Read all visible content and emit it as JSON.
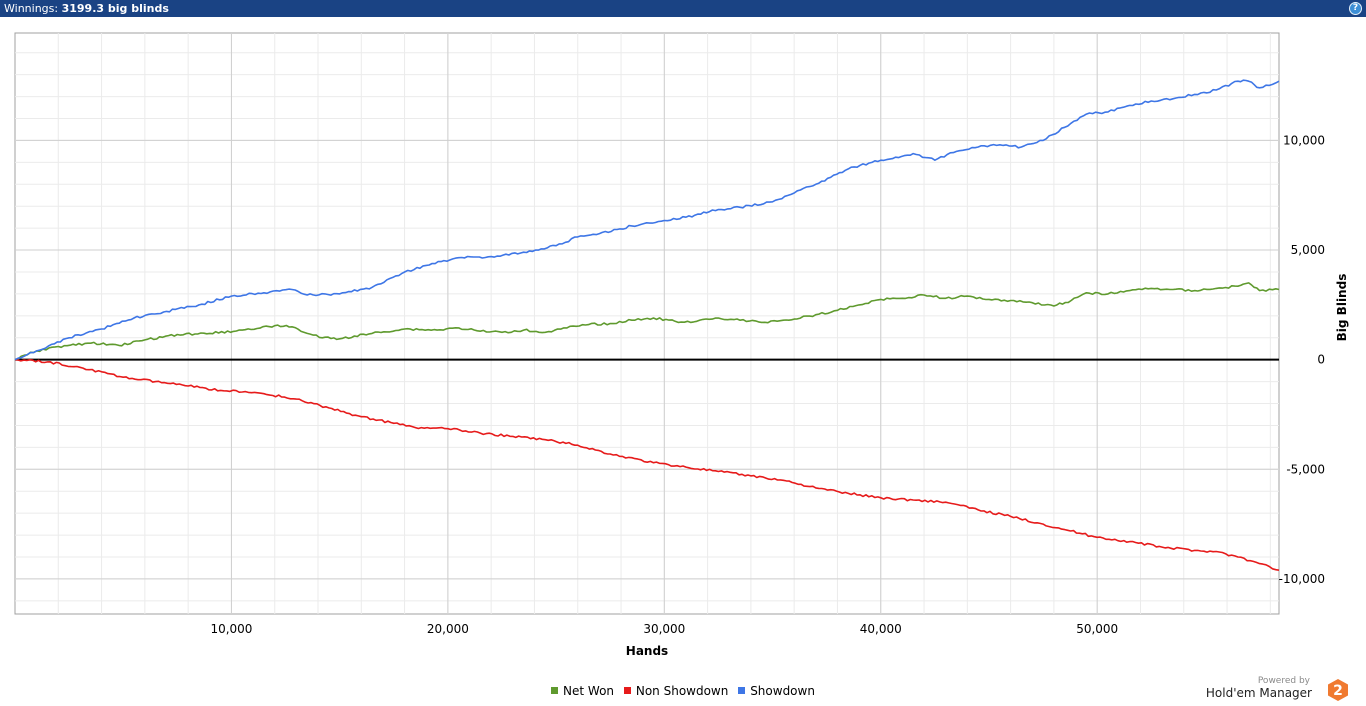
{
  "header": {
    "label": "Winnings:",
    "value": "3199.3 big blinds",
    "help_icon": "help-question-icon",
    "help_glyph": "?",
    "background": "#1a4384"
  },
  "legend": {
    "items": [
      {
        "label": "Net Won",
        "color": "#5f9a2e"
      },
      {
        "label": "Non Showdown",
        "color": "#e61b1b"
      },
      {
        "label": "Showdown",
        "color": "#3e76e6"
      }
    ]
  },
  "brand": {
    "powered_by": "Powered by",
    "name": "Hold'em Manager",
    "logo_icon": "holdem-manager-2-logo",
    "logo_text": "2",
    "logo_color": "#f07a30"
  },
  "chart_data": {
    "type": "line",
    "xlabel": "Hands",
    "ylabel": "Big Blinds",
    "xlim": [
      0,
      58400
    ],
    "ylim": [
      -11600,
      14900
    ],
    "x_ticks": [
      10000,
      20000,
      30000,
      40000,
      50000
    ],
    "x_tick_labels": [
      "10,000",
      "20,000",
      "30,000",
      "40,000",
      "50,000"
    ],
    "y_ticks": [
      -10000,
      -5000,
      0,
      5000,
      10000
    ],
    "y_tick_labels": [
      "-10,000",
      "-5,000",
      "0",
      "5,000",
      "10,000"
    ],
    "y_axis_position": "right",
    "grid": true,
    "zero_line": true,
    "legend_position": "bottom-center",
    "series": [
      {
        "name": "Net Won",
        "color": "#5f9a2e",
        "x": [
          0,
          1000,
          2000,
          3500,
          4800,
          6000,
          7500,
          9000,
          10500,
          12000,
          12800,
          13500,
          14200,
          15000,
          16500,
          18000,
          19500,
          20500,
          21500,
          22500,
          23500,
          24500,
          25500,
          26500,
          27500,
          28500,
          29500,
          30500,
          31500,
          32500,
          33500,
          34500,
          35500,
          36000,
          37000,
          38000,
          39000,
          40000,
          41000,
          42000,
          43000,
          44000,
          45000,
          46000,
          47000,
          48000,
          48800,
          49500,
          50500,
          51500,
          52500,
          53500,
          54500,
          55500,
          56500,
          57000,
          57500,
          58400
        ],
        "y": [
          0,
          400,
          600,
          750,
          650,
          900,
          1150,
          1200,
          1350,
          1550,
          1500,
          1200,
          1000,
          950,
          1200,
          1400,
          1350,
          1450,
          1300,
          1250,
          1350,
          1250,
          1450,
          1600,
          1650,
          1800,
          1900,
          1750,
          1750,
          1900,
          1800,
          1700,
          1800,
          1850,
          2050,
          2250,
          2500,
          2750,
          2800,
          2950,
          2800,
          2900,
          2750,
          2700,
          2600,
          2450,
          2700,
          3050,
          3000,
          3150,
          3250,
          3200,
          3150,
          3250,
          3350,
          3500,
          3150,
          3200
        ]
      },
      {
        "name": "Non Showdown",
        "color": "#e61b1b",
        "x": [
          0,
          1500,
          3000,
          5000,
          6500,
          8000,
          9500,
          11500,
          13000,
          14500,
          16000,
          17500,
          18500,
          20000,
          21500,
          23000,
          24500,
          26000,
          27500,
          29500,
          31000,
          32500,
          34000,
          35500,
          37000,
          38500,
          40000,
          41500,
          43000,
          44500,
          46000,
          47500,
          48500,
          50000,
          51500,
          53000,
          54500,
          55500,
          56500,
          57500,
          58400
        ],
        "y": [
          0,
          -100,
          -350,
          -800,
          -1000,
          -1200,
          -1400,
          -1550,
          -1800,
          -2200,
          -2600,
          -2900,
          -3100,
          -3150,
          -3350,
          -3500,
          -3650,
          -3900,
          -4300,
          -4700,
          -4900,
          -5100,
          -5300,
          -5500,
          -5850,
          -6100,
          -6300,
          -6400,
          -6500,
          -6850,
          -7150,
          -7500,
          -7750,
          -8100,
          -8300,
          -8550,
          -8700,
          -8750,
          -9000,
          -9300,
          -9600
        ]
      },
      {
        "name": "Showdown",
        "color": "#3e76e6",
        "x": [
          0,
          1000,
          2500,
          4000,
          5500,
          7000,
          8500,
          10000,
          11500,
          12800,
          13500,
          15000,
          16500,
          18000,
          19000,
          20500,
          22000,
          23500,
          25000,
          26000,
          27000,
          28500,
          30000,
          31000,
          32500,
          33500,
          35000,
          36000,
          37000,
          38500,
          40000,
          41500,
          42500,
          43500,
          44500,
          45500,
          46500,
          47500,
          48500,
          49500,
          50500,
          51500,
          52500,
          53500,
          54500,
          55500,
          56500,
          57000,
          57500,
          58400
        ],
        "y": [
          0,
          400,
          1000,
          1400,
          1900,
          2200,
          2500,
          2900,
          3050,
          3200,
          2950,
          3000,
          3300,
          4000,
          4300,
          4650,
          4700,
          4900,
          5200,
          5600,
          5750,
          6100,
          6350,
          6500,
          6850,
          6950,
          7200,
          7600,
          8000,
          8700,
          9100,
          9400,
          9100,
          9500,
          9700,
          9800,
          9700,
          10000,
          10600,
          11200,
          11300,
          11600,
          11800,
          11900,
          12100,
          12300,
          12700,
          12700,
          12400,
          12700
        ]
      }
    ]
  }
}
